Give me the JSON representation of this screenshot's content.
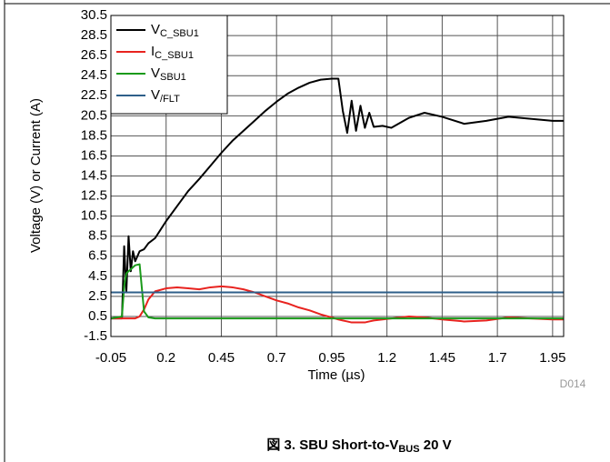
{
  "chart_data": {
    "type": "line",
    "title": [
      "図 3. SBU Short-to-V",
      "BUS",
      " 20 V"
    ],
    "xlabel": "Time (µs)",
    "ylabel": "Voltage (V) or Current (A)",
    "annotation": "D014",
    "xlim": [
      -0.05,
      2.0
    ],
    "ylim": [
      -1.5,
      30.5
    ],
    "xticks": [
      -0.05,
      0.2,
      0.45,
      0.7,
      0.95,
      1.2,
      1.45,
      1.7,
      1.95
    ],
    "yticks": [
      -1.5,
      0.5,
      2.5,
      4.5,
      6.5,
      8.5,
      10.5,
      12.5,
      14.5,
      16.5,
      18.5,
      20.5,
      22.5,
      24.5,
      26.5,
      28.5,
      30.5
    ],
    "grid": true,
    "legend": "upper left",
    "x": [
      -0.05,
      0.0,
      0.01,
      0.02,
      0.03,
      0.04,
      0.05,
      0.06,
      0.08,
      0.1,
      0.12,
      0.15,
      0.2,
      0.25,
      0.3,
      0.35,
      0.4,
      0.45,
      0.5,
      0.55,
      0.6,
      0.65,
      0.7,
      0.75,
      0.8,
      0.85,
      0.9,
      0.95,
      0.98,
      1.0,
      1.02,
      1.04,
      1.06,
      1.08,
      1.1,
      1.12,
      1.14,
      1.18,
      1.22,
      1.3,
      1.37,
      1.45,
      1.55,
      1.65,
      1.75,
      1.85,
      1.95,
      2.0
    ],
    "series": [
      {
        "name": "VC_SBU1",
        "color": "#000000",
        "values": [
          0.3,
          0.3,
          7.5,
          3,
          8.5,
          5,
          7,
          6,
          7,
          7.2,
          7.8,
          8.3,
          10,
          11.5,
          13,
          14.2,
          15.5,
          16.8,
          18,
          19,
          20,
          21,
          21.9,
          22.7,
          23.3,
          23.8,
          24.1,
          24.2,
          24.2,
          21,
          18.8,
          22,
          19,
          21.5,
          19.3,
          20.8,
          19.4,
          19.5,
          19.3,
          20.3,
          20.8,
          20.4,
          19.7,
          20,
          20.4,
          20.2,
          20,
          20
        ]
      },
      {
        "name": "IC_SBU1",
        "color": "#e8231f",
        "values": [
          0.3,
          0.3,
          0.3,
          0.3,
          0.3,
          0.3,
          0.3,
          0.3,
          0.5,
          1.2,
          2.2,
          3.0,
          3.3,
          3.4,
          3.3,
          3.2,
          3.4,
          3.5,
          3.4,
          3.2,
          2.9,
          2.5,
          2.1,
          1.8,
          1.4,
          1.1,
          0.7,
          0.4,
          0.2,
          0.1,
          0.0,
          -0.1,
          -0.1,
          -0.1,
          -0.1,
          0.0,
          0.1,
          0.2,
          0.3,
          0.5,
          0.4,
          0.2,
          0.0,
          0.1,
          0.4,
          0.3,
          0.2,
          0.2
        ]
      },
      {
        "name": "VSBU1",
        "color": "#1a9a1a",
        "values": [
          0.3,
          0.5,
          3.5,
          4.8,
          5.0,
          5.2,
          5.4,
          5.6,
          5.7,
          1.0,
          0.4,
          0.3,
          0.3,
          0.3,
          0.3,
          0.3,
          0.3,
          0.3,
          0.3,
          0.3,
          0.3,
          0.3,
          0.3,
          0.3,
          0.3,
          0.3,
          0.3,
          0.3,
          0.3,
          0.3,
          0.3,
          0.3,
          0.3,
          0.3,
          0.3,
          0.3,
          0.3,
          0.3,
          0.3,
          0.3,
          0.3,
          0.3,
          0.3,
          0.3,
          0.3,
          0.3,
          0.3,
          0.3
        ]
      },
      {
        "name": "V/FLT",
        "color": "#2e5f8a",
        "values": [
          2.9,
          2.9,
          2.9,
          2.9,
          2.9,
          2.9,
          2.9,
          2.9,
          2.9,
          2.9,
          2.9,
          2.9,
          2.9,
          2.9,
          2.9,
          2.9,
          2.9,
          2.9,
          2.9,
          2.9,
          2.9,
          2.9,
          2.9,
          2.9,
          2.9,
          2.9,
          2.9,
          2.9,
          2.9,
          2.9,
          2.9,
          2.9,
          2.9,
          2.9,
          2.9,
          2.9,
          2.9,
          2.9,
          2.9,
          2.9,
          2.9,
          2.9,
          2.9,
          2.9,
          2.9,
          2.9,
          2.9,
          2.9
        ]
      }
    ]
  }
}
